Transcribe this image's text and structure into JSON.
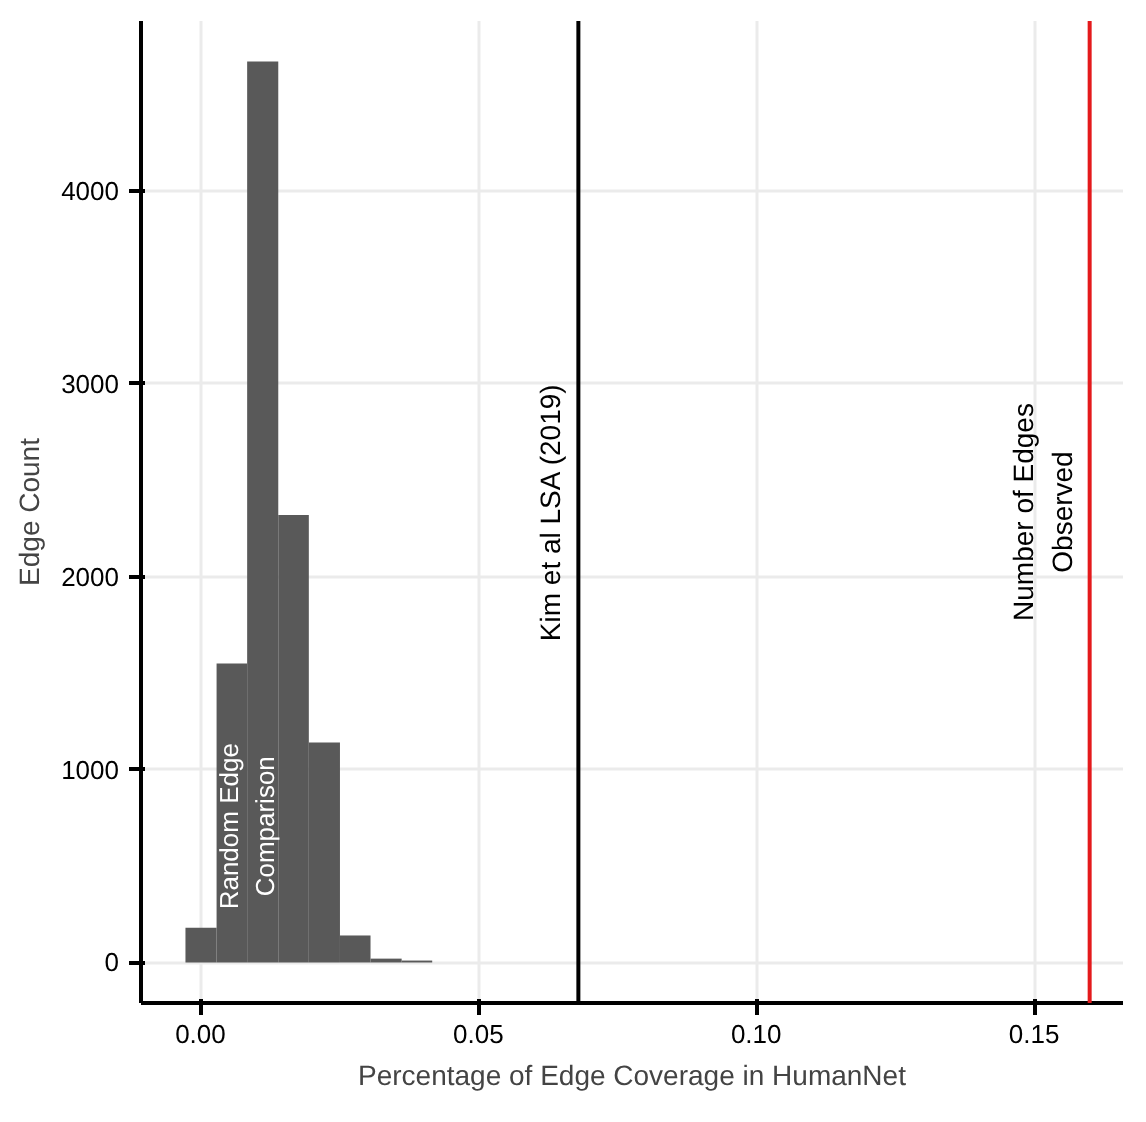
{
  "chart_data": {
    "type": "histogram",
    "xlabel": "Percentage of Edge Coverage in HumanNet",
    "ylabel": "Edge Count",
    "bins": [
      -0.0027,
      0.0029,
      0.0084,
      0.014,
      0.0195,
      0.0251,
      0.0306,
      0.0362,
      0.0417
    ],
    "values": [
      180,
      1550,
      4670,
      2320,
      1140,
      140,
      20,
      10
    ],
    "color": "#595959",
    "xlim": [
      -0.0107,
      0.166
    ],
    "ylim": [
      -210,
      4880
    ],
    "xticks": [
      {
        "value": 0,
        "label": "0.00"
      },
      0.05,
      {
        "value": 0.1,
        "label": "0.10"
      },
      0.15
    ],
    "yticks": [
      0,
      1000,
      2000,
      3000,
      4000
    ],
    "grid": true,
    "ref_lines": [
      {
        "axis": "x",
        "value": 0.068,
        "label": "Kim et al LSA (2019)",
        "color": "#000000"
      },
      {
        "axis": "x",
        "value": 0.16,
        "label": "Number of Edges\nObserved",
        "color": "#e41a1c"
      }
    ],
    "annotations": [
      "Random Edge\nComparison"
    ]
  }
}
